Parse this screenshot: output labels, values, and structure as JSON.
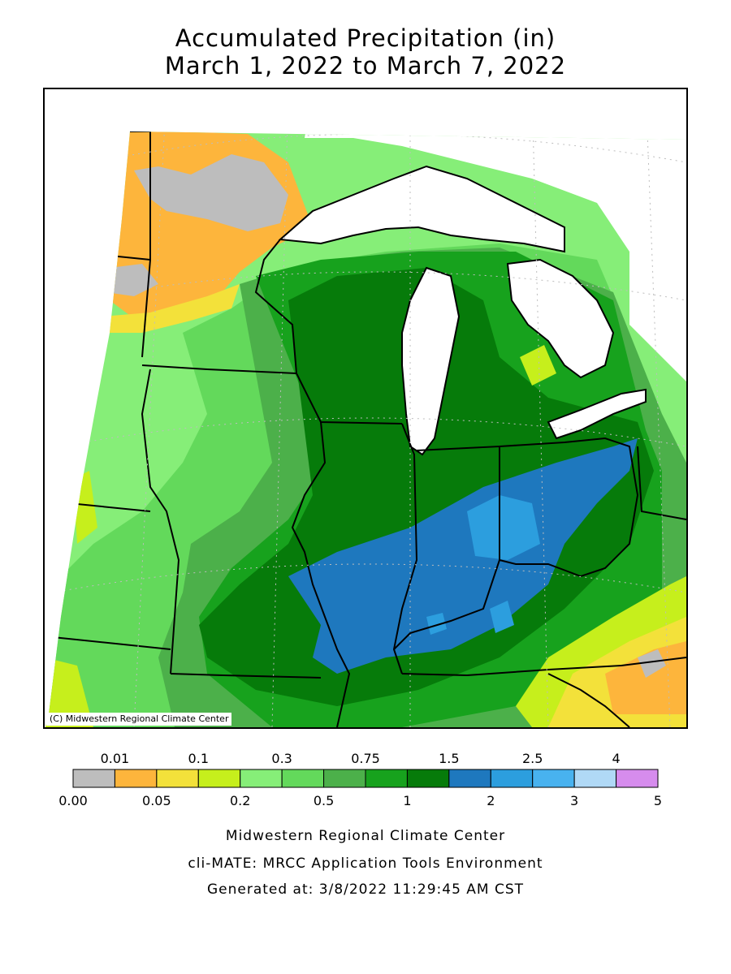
{
  "title": {
    "line1": "Accumulated Precipitation (in)",
    "line2": "March 1, 2022 to March 7, 2022"
  },
  "map": {
    "region": "Midwest United States",
    "copyright": "(C) Midwestern Regional Climate Center",
    "water_color": "#ffffff"
  },
  "legend": {
    "top_labels": [
      "0.01",
      "0.1",
      "0.3",
      "0.75",
      "1.5",
      "2.5",
      "4"
    ],
    "bottom_labels": [
      "0.00",
      "0.05",
      "0.2",
      "0.5",
      "1",
      "2",
      "3",
      "5"
    ],
    "colors": [
      "#bdbdbd",
      "#fdb53c",
      "#f3e13a",
      "#c6ef1c",
      "#86ee78",
      "#63d95b",
      "#4cb04a",
      "#17a21d",
      "#067b0a",
      "#1e78be",
      "#2c9ede",
      "#48b2ef",
      "#b0d9f6",
      "#d68ced"
    ]
  },
  "credits": {
    "line1": "Midwestern Regional Climate Center",
    "line2": "cli-MATE: MRCC Application Tools Environment",
    "line3": "Generated at: 3/8/2022 11:29:45 AM CST"
  }
}
